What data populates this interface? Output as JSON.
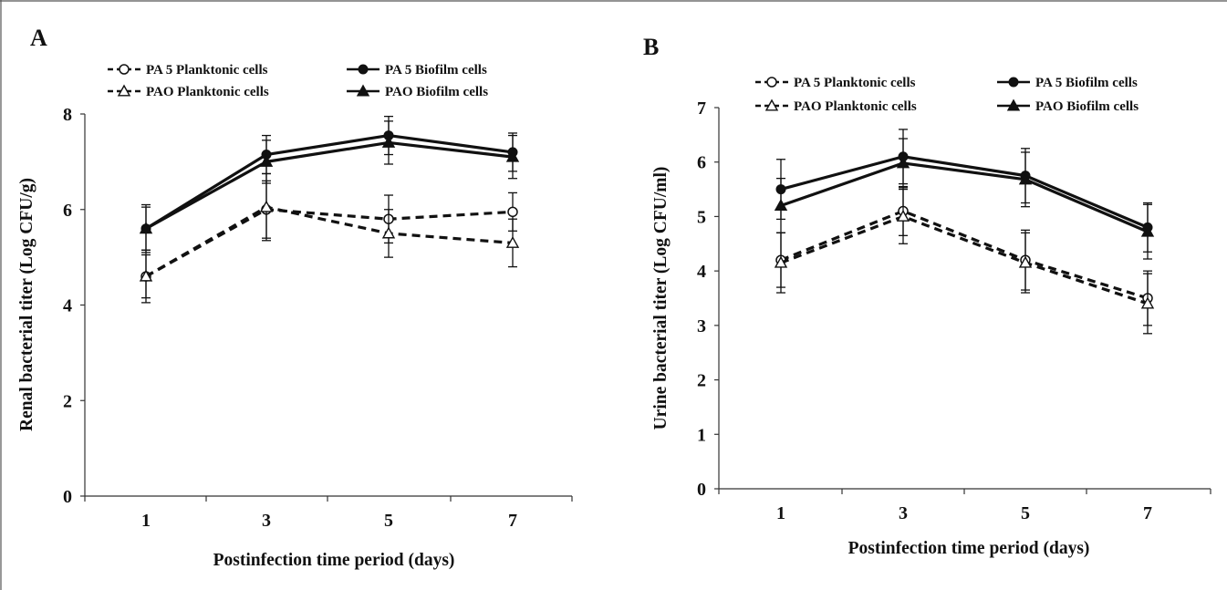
{
  "chart_data": [
    {
      "panel_label": "A",
      "type": "line",
      "x": [
        1,
        3,
        5,
        7
      ],
      "xticks": [
        "1",
        "3",
        "5",
        "7"
      ],
      "xlabel": "Postinfection time period (days)",
      "ylabel": "Renal bacterial titer (Log CFU/g)",
      "ylim": [
        0,
        8
      ],
      "yticks": [
        0,
        2,
        4,
        6,
        8
      ],
      "legend_placement": "top",
      "series": [
        {
          "name": "PA 5 Planktonic cells",
          "marker": "open-circle",
          "dash": true,
          "values": [
            4.6,
            6.0,
            5.8,
            5.95
          ],
          "err": [
            0.55,
            0.6,
            0.5,
            0.4
          ]
        },
        {
          "name": "PA 5 Biofilm cells",
          "marker": "filled-circle",
          "dash": false,
          "values": [
            5.6,
            7.15,
            7.55,
            7.2
          ],
          "err": [
            0.45,
            0.4,
            0.4,
            0.4
          ]
        },
        {
          "name": "PAO Planktonic cells",
          "marker": "open-triangle",
          "dash": true,
          "values": [
            4.6,
            6.05,
            5.5,
            5.3
          ],
          "err": [
            0.45,
            0.7,
            0.5,
            0.5
          ]
        },
        {
          "name": "PAO Biofilm cells",
          "marker": "filled-triangle",
          "dash": false,
          "values": [
            5.6,
            7.0,
            7.4,
            7.1
          ],
          "err": [
            0.5,
            0.45,
            0.45,
            0.45
          ]
        }
      ]
    },
    {
      "panel_label": "B",
      "type": "line",
      "x": [
        1,
        3,
        5,
        7
      ],
      "xticks": [
        "1",
        "3",
        "5",
        "7"
      ],
      "xlabel": "Postinfection time period (days)",
      "ylabel": "Urine bacterial titer (Log CFU/ml)",
      "ylim": [
        0,
        7
      ],
      "yticks": [
        0,
        1,
        2,
        3,
        4,
        5,
        6,
        7
      ],
      "legend_placement": "top",
      "series": [
        {
          "name": "PA 5 Planktonic cells",
          "marker": "open-circle",
          "dash": true,
          "values": [
            4.2,
            5.1,
            4.2,
            3.5
          ],
          "err": [
            0.5,
            0.45,
            0.55,
            0.5
          ]
        },
        {
          "name": "PA 5 Biofilm cells",
          "marker": "filled-circle",
          "dash": false,
          "values": [
            5.5,
            6.1,
            5.75,
            4.8
          ],
          "err": [
            0.55,
            0.5,
            0.5,
            0.45
          ]
        },
        {
          "name": "PAO Planktonic cells",
          "marker": "open-triangle",
          "dash": true,
          "values": [
            4.15,
            5.0,
            4.15,
            3.4
          ],
          "err": [
            0.55,
            0.5,
            0.55,
            0.55
          ]
        },
        {
          "name": "PAO Biofilm cells",
          "marker": "filled-triangle",
          "dash": false,
          "values": [
            5.2,
            5.98,
            5.68,
            4.72
          ],
          "err": [
            0.5,
            0.45,
            0.5,
            0.5
          ]
        }
      ]
    }
  ]
}
